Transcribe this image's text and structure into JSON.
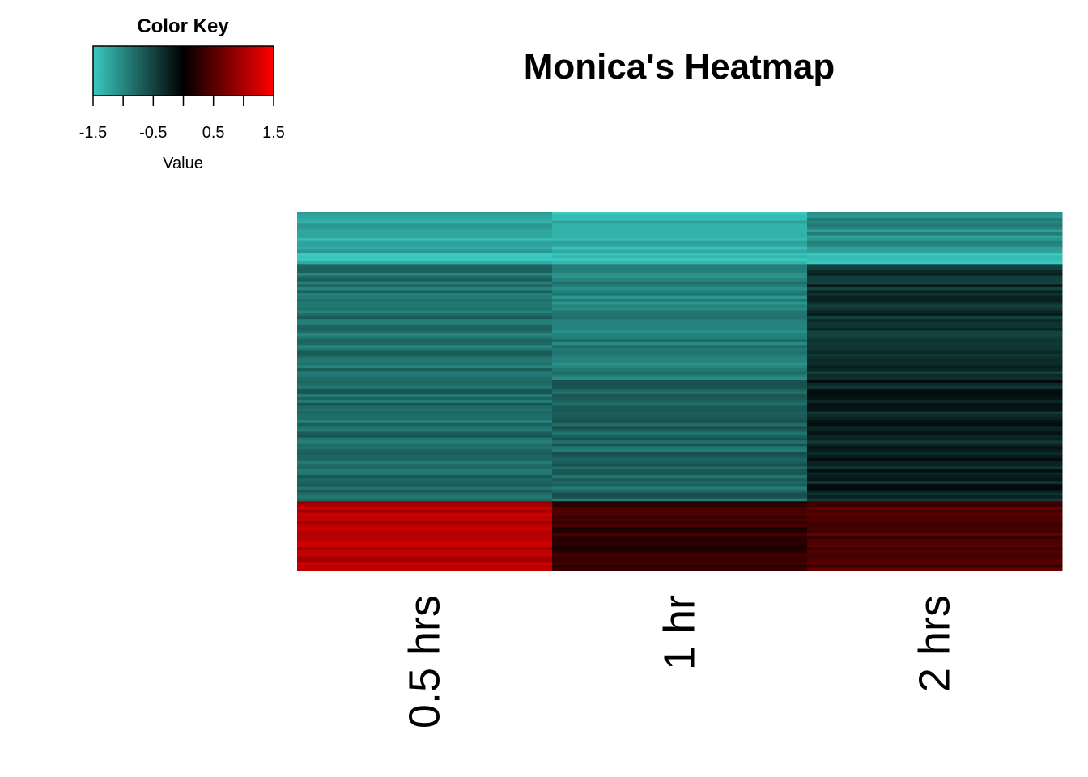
{
  "chart_data": {
    "type": "heatmap",
    "title": "Monica's Heatmap",
    "columns": [
      "0.5 hrs",
      "1 hr",
      "2 hrs"
    ],
    "color_key": {
      "title": "Color Key",
      "label": "Value",
      "ticks": [
        -1.5,
        -1.0,
        -0.5,
        0.0,
        0.5,
        1.0,
        1.5
      ],
      "tick_labels": [
        "-1.5",
        "-0.5",
        "0.5",
        "1.5"
      ],
      "tick_label_values": [
        -1.5,
        -0.5,
        0.5,
        1.5
      ],
      "range": [
        -1.5,
        1.5
      ],
      "colors": {
        "low": "#3ac9c0",
        "mid": "#000000",
        "high": "#ff0000"
      }
    },
    "row_blocks": [
      {
        "rows": 14,
        "values": [
          -1.25,
          -1.35,
          -1.05
        ]
      },
      {
        "rows": 4,
        "values": [
          -1.45,
          -1.5,
          -1.4
        ]
      },
      {
        "rows": 40,
        "values": [
          -0.85,
          -0.95,
          -0.35
        ]
      },
      {
        "rows": 42,
        "values": [
          -0.8,
          -0.75,
          -0.25
        ]
      },
      {
        "rows": 24,
        "values": [
          1.05,
          0.3,
          0.45
        ]
      }
    ],
    "legend": "top-left",
    "grid": false
  }
}
